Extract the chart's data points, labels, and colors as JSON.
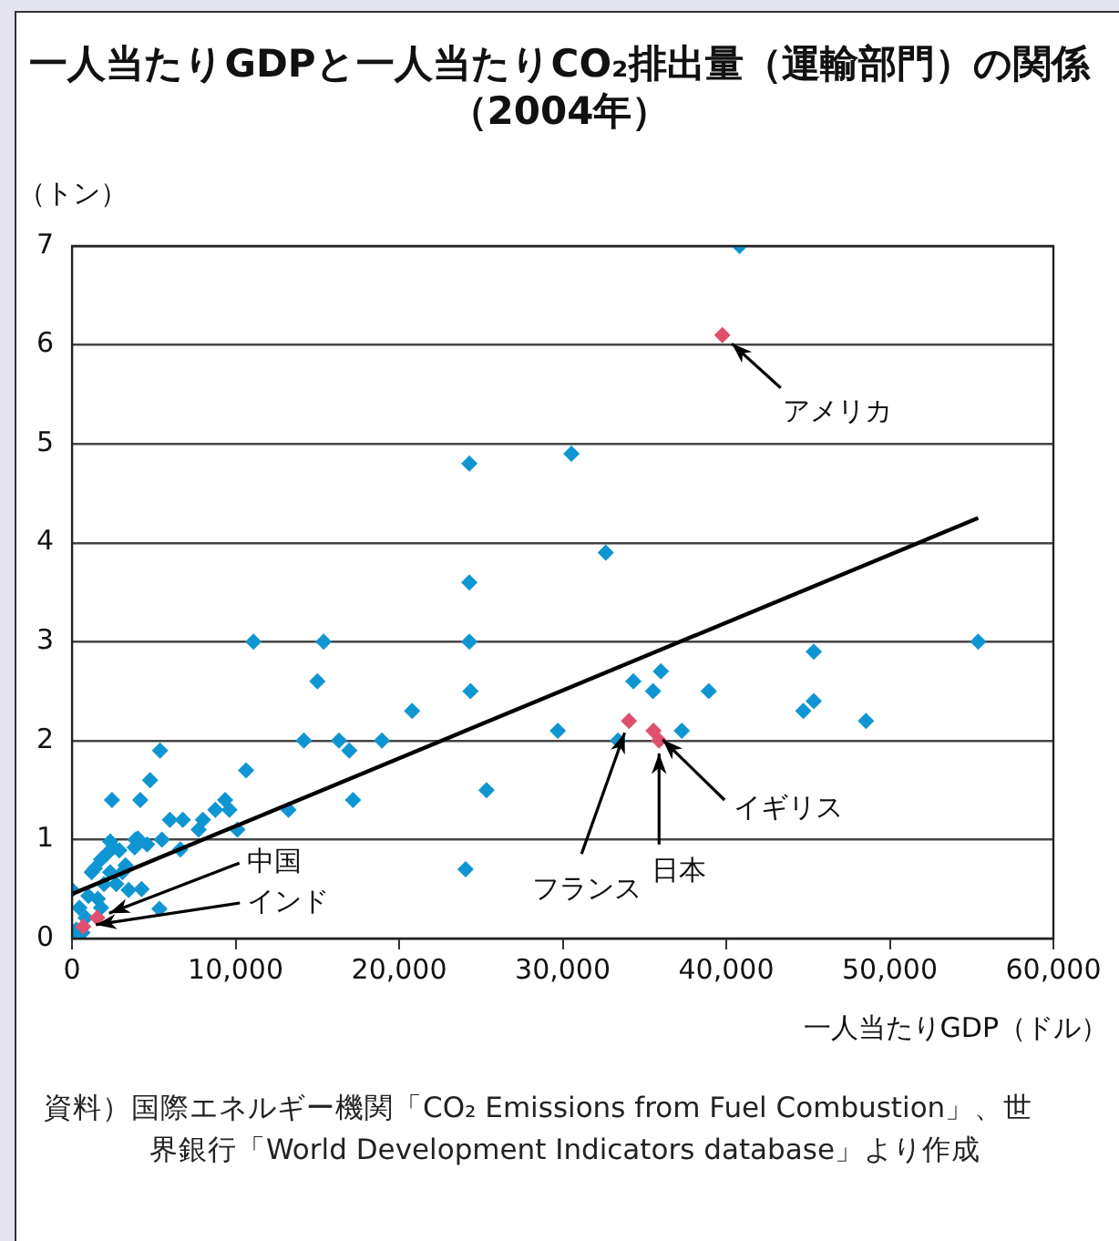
{
  "chart_data": {
    "type": "scatter",
    "title": "一人当たりGDPと一人当たりCO₂排出量（運輸部門）の関係（2004年）",
    "xlabel": "一人当たりGDP（ドル）",
    "ylabel": "（トン）",
    "xlim": [
      0,
      60000
    ],
    "xticks": [
      0,
      {
        "value": 10000,
        "label": "10,000"
      },
      {
        "value": 20000,
        "label": "20,000"
      },
      {
        "value": 30000,
        "label": "30,000"
      },
      {
        "value": 40000,
        "label": "40,000"
      },
      {
        "value": 50000,
        "label": "50,000"
      },
      {
        "value": 60000,
        "label": "60,000"
      }
    ],
    "ylim": [
      0,
      7
    ],
    "yticks": [
      0,
      1,
      2,
      3,
      4,
      5,
      6,
      7
    ],
    "grid": "y",
    "legend": false,
    "marker": "diamond",
    "series": [
      {
        "color": "#0f96d2",
        "x": [
          24290,
          24290,
          24290,
          24360,
          24060,
          11090,
          15380,
          15000,
          14170,
          16320,
          16950,
          18950,
          20790,
          17180,
          25340,
          13230,
          10640,
          10110,
          9360,
          9620,
          8760,
          8000,
          7740,
          6770,
          5980,
          5380,
          4770,
          4170,
          2440,
          5340,
          4250,
          3870,
          5490,
          6620,
          0,
          260,
          0,
          450,
          1000,
          1390,
          1200,
          1770,
          2140,
          2520,
          2890,
          2330,
          2700,
          3270,
          1950,
          1580,
          830,
          3830,
          4020,
          3080,
          1770,
          640,
          3460,
          4590,
          2330,
          40810,
          30530,
          32630,
          55400,
          45350,
          34320,
          36000,
          35520,
          38930,
          29700,
          33380,
          37280,
          44710,
          45350,
          48540
        ],
        "values": [
          4.8,
          3.6,
          3.0,
          2.5,
          0.7,
          3.0,
          3.0,
          2.6,
          2.0,
          2.0,
          1.9,
          2.0,
          2.3,
          1.4,
          1.5,
          1.3,
          1.7,
          1.1,
          1.4,
          1.3,
          1.3,
          1.2,
          1.1,
          1.2,
          1.2,
          1.9,
          1.6,
          1.4,
          1.4,
          0.3,
          0.5,
          1.0,
          1.0,
          0.9,
          0.0,
          0.09,
          0.49,
          0.31,
          0.43,
          0.71,
          0.67,
          0.8,
          0.86,
          0.92,
          0.89,
          0.67,
          0.55,
          0.74,
          0.55,
          0.4,
          0.21,
          0.92,
          1.01,
          0.67,
          0.31,
          0.06,
          0.49,
          0.95,
          0.98,
          7.0,
          4.9,
          3.9,
          3.0,
          2.9,
          2.6,
          2.7,
          2.5,
          2.5,
          2.1,
          2.0,
          2.1,
          2.3,
          2.4,
          2.2
        ]
      },
      {
        "color": "#e0506e",
        "x": [
          39760,
          34050,
          35550,
          35890,
          1540,
          680
        ],
        "values": [
          6.1,
          2.2,
          2.1,
          2.0,
          0.21,
          0.12
        ]
      },
      {
        "type": "line",
        "color": "#000000",
        "marker": "none",
        "line_style": "solid",
        "x": [
          0,
          55400
        ],
        "values": [
          0.45,
          4.25
        ]
      }
    ],
    "annotations": [
      {
        "text": "アメリカ",
        "x": 39760,
        "y": 6.1
      },
      {
        "text": "中国",
        "x": 1540,
        "y": 0.21
      },
      {
        "text": "インド",
        "x": 680,
        "y": 0.12
      },
      {
        "text": "フランス",
        "x": 34050,
        "y": 2.2
      },
      {
        "text": "日本",
        "x": 35890,
        "y": 2.0
      },
      {
        "text": "イギリス",
        "x": 35550,
        "y": 2.1
      },
      "資料）国際エネルギー機関「CO₂ Emissions from Fuel Combustion」、世界銀行「World Development Indicators database」より作成"
    ]
  }
}
